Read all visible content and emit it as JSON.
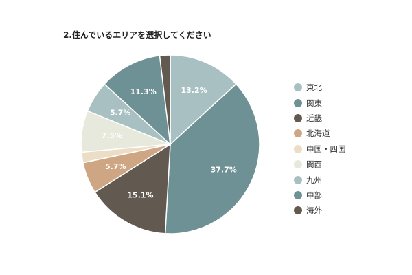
{
  "chart_data": {
    "type": "pie",
    "title": "2.住んでいるエリアを選択してください",
    "categories": [
      "東北",
      "関東",
      "近畿",
      "北海道",
      "中国・四国",
      "関西",
      "九州",
      "中部",
      "海外"
    ],
    "legend_order": [
      "東北",
      "関東",
      "近畿",
      "北海道",
      "中国・四国",
      "関西",
      "九州",
      "中部",
      "海外"
    ],
    "slices": [
      {
        "name": "東北",
        "value": 13.2,
        "label": "13.2%",
        "color": "#a9c0c2"
      },
      {
        "name": "関東",
        "value": 37.7,
        "label": "37.7%",
        "color": "#6e9195"
      },
      {
        "name": "近畿",
        "value": 15.1,
        "label": "15.1%",
        "color": "#625a51"
      },
      {
        "name": "北海道",
        "value": 5.7,
        "label": "5.7%",
        "color": "#cfa683"
      },
      {
        "name": "中国・四国",
        "value": 1.9,
        "label": "",
        "color": "#ecdec6"
      },
      {
        "name": "関西",
        "value": 7.5,
        "label": "7.5%",
        "color": "#e8e9dd"
      },
      {
        "name": "九州",
        "value": 5.7,
        "label": "5.7%",
        "color": "#a9c0c2"
      },
      {
        "name": "中部",
        "value": 11.3,
        "label": "11.3%",
        "color": "#6e9195"
      },
      {
        "name": "海外",
        "value": 1.9,
        "label": "",
        "color": "#625a51"
      }
    ],
    "legend_position": "right"
  }
}
